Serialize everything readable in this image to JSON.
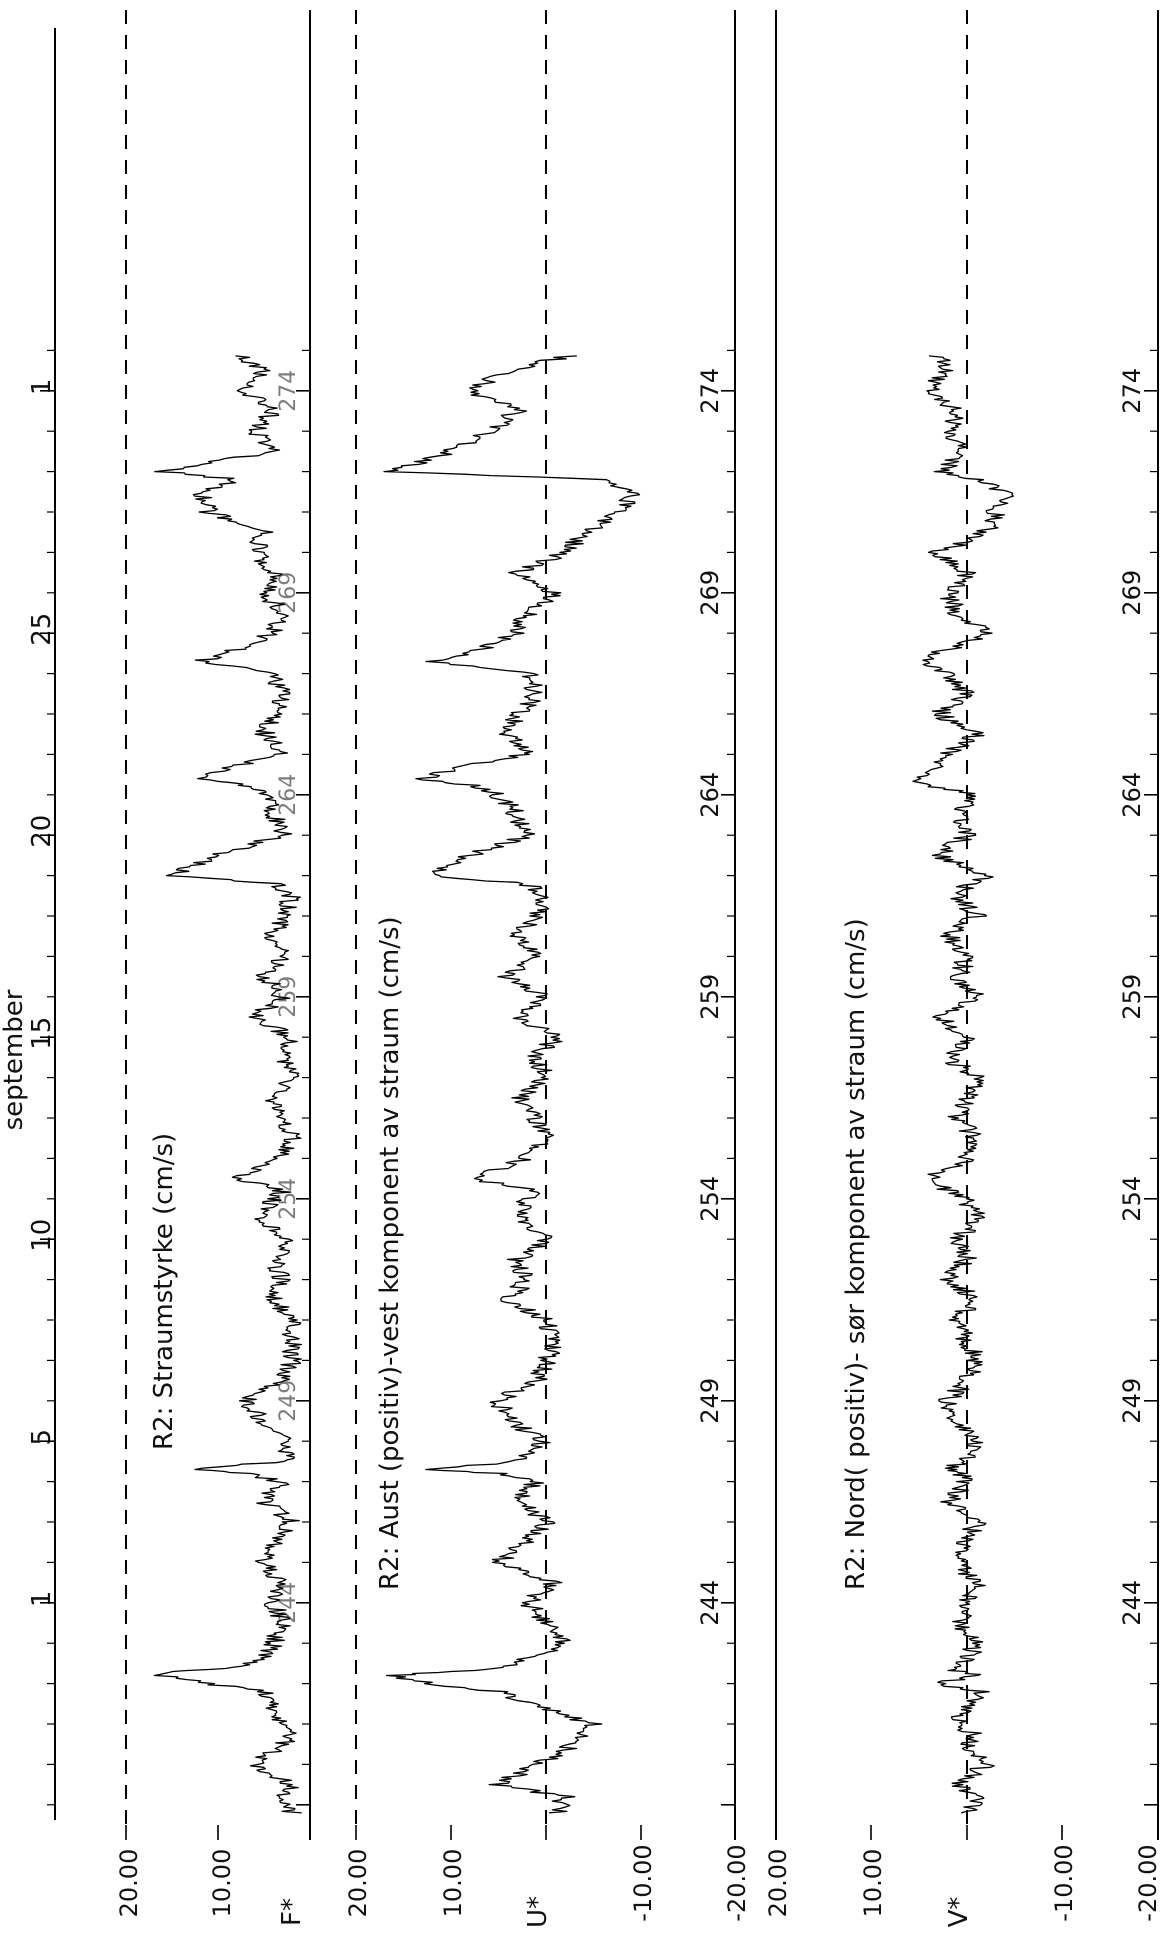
{
  "chart_data": [
    {
      "type": "line",
      "title": "R2: Straumstyrke (cm/s)",
      "ylabel": "F*",
      "yticks": [
        "20.00",
        "10.00"
      ],
      "ylim": [
        0,
        20
      ],
      "xlim": [
        238.5,
        275
      ],
      "series": [
        {
          "name": "F*",
          "x": [
            238.8,
            239.2,
            239.5,
            240.0,
            240.5,
            240.7,
            241.0,
            241.5,
            241.8,
            242.0,
            242.2,
            242.3,
            242.4,
            242.6,
            243.0,
            243.5,
            244.0,
            244.5,
            245.0,
            245.5,
            246.0,
            246.5,
            247.0,
            247.2,
            247.3,
            247.5,
            248.0,
            248.5,
            249.0,
            249.5,
            250.0,
            250.5,
            251.0,
            251.5,
            252.0,
            252.5,
            253.0,
            253.5,
            254.0,
            254.2,
            254.5,
            255.0,
            255.5,
            256.0,
            256.5,
            257.0,
            257.5,
            258.0,
            258.5,
            259.0,
            259.5,
            260.0,
            260.5,
            261.0,
            261.5,
            261.8,
            262.0,
            262.5,
            263.0,
            263.5,
            264.0,
            264.2,
            264.4,
            264.7,
            265.0,
            265.5,
            266.0,
            266.5,
            267.0,
            267.3,
            267.5,
            268.0,
            268.5,
            269.0,
            269.5,
            270.0,
            270.5,
            271.0,
            271.5,
            271.8,
            272.0,
            272.5,
            273.0,
            273.5,
            274.0,
            274.5,
            274.9
          ],
          "values": [
            2,
            3,
            2,
            6,
            3,
            2,
            3,
            4,
            5,
            11,
            16,
            14,
            9,
            5,
            4,
            3,
            4,
            3,
            5,
            4,
            2,
            5,
            3,
            7,
            13,
            3,
            2,
            5,
            7,
            3,
            2,
            2,
            2,
            4,
            3,
            4,
            2,
            6,
            4,
            3,
            8,
            3,
            2,
            3,
            4,
            2,
            3,
            2,
            6,
            3,
            5,
            3,
            4,
            3,
            2,
            4,
            15,
            10,
            3,
            4,
            5,
            6,
            12,
            8,
            3,
            5,
            4,
            3,
            4,
            12,
            9,
            4,
            3,
            5,
            4,
            6,
            5,
            11,
            12,
            8,
            16,
            4,
            6,
            4,
            7,
            5,
            8
          ]
        }
      ]
    },
    {
      "type": "line",
      "title": "R2: Aust (positiv)-vest komponent av straum (cm/s)",
      "ylabel": "U*",
      "yticks": [
        "20.00",
        "10.00",
        "-10.00",
        "-20.00"
      ],
      "ylim": [
        -20,
        20
      ],
      "xlim": [
        238.5,
        275
      ],
      "series": [
        {
          "name": "U*",
          "x": [
            238.8,
            239.2,
            239.5,
            240.0,
            240.5,
            240.7,
            241.0,
            241.5,
            241.8,
            242.0,
            242.2,
            242.3,
            242.4,
            242.6,
            243.0,
            243.5,
            244.0,
            244.5,
            245.0,
            245.5,
            246.0,
            246.5,
            247.0,
            247.2,
            247.3,
            247.5,
            248.0,
            248.5,
            249.0,
            249.5,
            250.0,
            250.5,
            251.0,
            251.5,
            252.0,
            252.5,
            253.0,
            253.5,
            254.0,
            254.2,
            254.5,
            255.0,
            255.5,
            256.0,
            256.5,
            257.0,
            257.5,
            258.0,
            258.5,
            259.0,
            259.5,
            260.0,
            260.5,
            261.0,
            261.5,
            261.8,
            262.0,
            262.5,
            263.0,
            263.5,
            264.0,
            264.2,
            264.4,
            264.7,
            265.0,
            265.5,
            266.0,
            266.5,
            267.0,
            267.3,
            267.5,
            268.0,
            268.5,
            269.0,
            269.5,
            270.0,
            270.5,
            271.0,
            271.5,
            271.8,
            272.0,
            272.5,
            273.0,
            273.5,
            274.0,
            274.5,
            274.9
          ],
          "values": [
            -1,
            -2,
            5,
            1,
            -3,
            -4,
            -5,
            2,
            5,
            12,
            16,
            10,
            4,
            2,
            -2,
            0,
            2,
            -1,
            5,
            2,
            0,
            3,
            1,
            5,
            12,
            3,
            0,
            4,
            5,
            1,
            0,
            -1,
            0,
            4,
            2,
            3,
            0,
            3,
            2,
            1,
            8,
            2,
            0,
            1,
            3,
            0,
            1,
            -1,
            3,
            0,
            4,
            1,
            3,
            1,
            0,
            2,
            12,
            8,
            2,
            3,
            5,
            7,
            13,
            9,
            2,
            4,
            3,
            1,
            2,
            12,
            8,
            3,
            2,
            -1,
            3,
            -2,
            -4,
            -8,
            -9,
            -6,
            16,
            10,
            6,
            3,
            8,
            4,
            -3
          ]
        }
      ]
    },
    {
      "type": "line",
      "title": "R2: Nord( positiv)- sør komponent av straum (cm/s)",
      "ylabel": "V*",
      "yticks": [
        "20.00",
        "10.00",
        "-10.00",
        "-20.00"
      ],
      "ylim": [
        -20,
        20
      ],
      "xlim": [
        238.5,
        275
      ],
      "series": [
        {
          "name": "V*",
          "x": [
            238.8,
            239.2,
            239.5,
            240.0,
            240.5,
            240.7,
            241.0,
            241.5,
            241.8,
            242.0,
            242.2,
            242.3,
            242.4,
            242.6,
            243.0,
            243.5,
            244.0,
            244.5,
            245.0,
            245.5,
            246.0,
            246.5,
            247.0,
            247.2,
            247.3,
            247.5,
            248.0,
            248.5,
            249.0,
            249.5,
            250.0,
            250.5,
            251.0,
            251.5,
            252.0,
            252.5,
            253.0,
            253.5,
            254.0,
            254.2,
            254.5,
            255.0,
            255.5,
            256.0,
            256.5,
            257.0,
            257.5,
            258.0,
            258.5,
            259.0,
            259.5,
            260.0,
            260.5,
            261.0,
            261.5,
            261.8,
            262.0,
            262.5,
            263.0,
            263.5,
            264.0,
            264.2,
            264.4,
            264.7,
            265.0,
            265.5,
            266.0,
            266.5,
            267.0,
            267.3,
            267.5,
            268.0,
            268.5,
            269.0,
            269.5,
            270.0,
            270.5,
            271.0,
            271.5,
            271.8,
            272.0,
            272.5,
            273.0,
            273.5,
            274.0,
            274.5,
            274.9
          ],
          "values": [
            0,
            -1,
            1,
            -2,
            0,
            -1,
            1,
            0,
            -2,
            3,
            -1,
            1,
            2,
            0,
            -1,
            1,
            0,
            -1,
            1,
            0,
            -1,
            2,
            0,
            1,
            2,
            0,
            -1,
            1,
            2,
            0,
            -1,
            0,
            1,
            -1,
            2,
            0,
            1,
            -1,
            0,
            2,
            4,
            0,
            -1,
            1,
            0,
            -1,
            2,
            0,
            3,
            -1,
            1,
            0,
            2,
            -1,
            1,
            0,
            -2,
            3,
            0,
            1,
            -1,
            4,
            5,
            3,
            2,
            -1,
            3,
            0,
            2,
            5,
            3,
            -2,
            1,
            2,
            0,
            3,
            -2,
            -3,
            -4,
            -1,
            3,
            0,
            2,
            1,
            4,
            2,
            3
          ]
        }
      ]
    }
  ],
  "xaxis": {
    "day_numbers": [
      "244",
      "249",
      "254",
      "259",
      "264",
      "269",
      "274"
    ],
    "date_label": "september",
    "date_ticks": [
      "1",
      "5",
      "10",
      "15",
      "20",
      "25",
      "1"
    ]
  },
  "overlay_labels": [
    "244",
    "249",
    "254",
    "259",
    "264",
    "269",
    "274"
  ]
}
